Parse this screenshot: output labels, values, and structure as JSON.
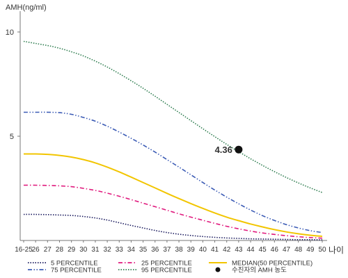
{
  "chart_data": {
    "type": "line",
    "ylabel": "AMH(ng/ml)",
    "xlabel": "나이",
    "ylim": [
      0,
      11
    ],
    "yticks": [
      5,
      10
    ],
    "grid": false,
    "legend_position": "bottom",
    "categories": [
      "16-25",
      "26",
      "27",
      "28",
      "29",
      "30",
      "31",
      "32",
      "33",
      "34",
      "35",
      "36",
      "37",
      "38",
      "39",
      "40",
      "41",
      "42",
      "43",
      "44",
      "45",
      "46",
      "47",
      "48",
      "49",
      "50"
    ],
    "series": [
      {
        "name": "5 PERCENTILE",
        "color": "#1a1a5e",
        "dash": "dotted",
        "values": [
          1.25,
          1.25,
          1.24,
          1.22,
          1.2,
          1.15,
          1.08,
          0.98,
          0.85,
          0.72,
          0.6,
          0.48,
          0.38,
          0.3,
          0.24,
          0.19,
          0.15,
          0.12,
          0.1,
          0.08,
          0.07,
          0.06,
          0.05,
          0.04,
          0.04,
          0.03
        ]
      },
      {
        "name": "25 PERCENTILE",
        "color": "#e0197d",
        "dash": "dashdot",
        "values": [
          2.65,
          2.65,
          2.64,
          2.62,
          2.58,
          2.5,
          2.4,
          2.27,
          2.12,
          1.96,
          1.79,
          1.62,
          1.45,
          1.28,
          1.12,
          0.97,
          0.82,
          0.68,
          0.56,
          0.45,
          0.36,
          0.29,
          0.23,
          0.18,
          0.14,
          0.11
        ]
      },
      {
        "name": "MEDIAN(50 PERCENTILE)",
        "color": "#f2c500",
        "dash": "solid",
        "values": [
          4.15,
          4.15,
          4.13,
          4.08,
          4.0,
          3.88,
          3.72,
          3.52,
          3.29,
          3.04,
          2.78,
          2.52,
          2.26,
          2.01,
          1.77,
          1.54,
          1.32,
          1.12,
          0.95,
          0.79,
          0.65,
          0.52,
          0.41,
          0.32,
          0.25,
          0.2
        ]
      },
      {
        "name": "75 PERCENTILE",
        "color": "#3b5bb5",
        "dash": "dashdotdot",
        "values": [
          6.15,
          6.15,
          6.15,
          6.13,
          6.05,
          5.9,
          5.72,
          5.48,
          5.2,
          4.9,
          4.58,
          4.24,
          3.88,
          3.52,
          3.15,
          2.78,
          2.42,
          2.08,
          1.76,
          1.46,
          1.19,
          0.96,
          0.76,
          0.6,
          0.47,
          0.38
        ]
      },
      {
        "name": "95 PERCENTILE",
        "color": "#2e7d4f",
        "dash": "dotted",
        "values": [
          9.55,
          9.45,
          9.35,
          9.22,
          9.05,
          8.85,
          8.6,
          8.32,
          8.0,
          7.66,
          7.3,
          6.92,
          6.53,
          6.14,
          5.75,
          5.36,
          4.98,
          4.61,
          4.26,
          3.92,
          3.6,
          3.3,
          3.02,
          2.76,
          2.52,
          2.3
        ]
      }
    ],
    "patient_point": {
      "name": "수진자의 AMH 농도",
      "category": "43",
      "value": 4.36,
      "label": "4.36",
      "color": "#111111"
    }
  }
}
